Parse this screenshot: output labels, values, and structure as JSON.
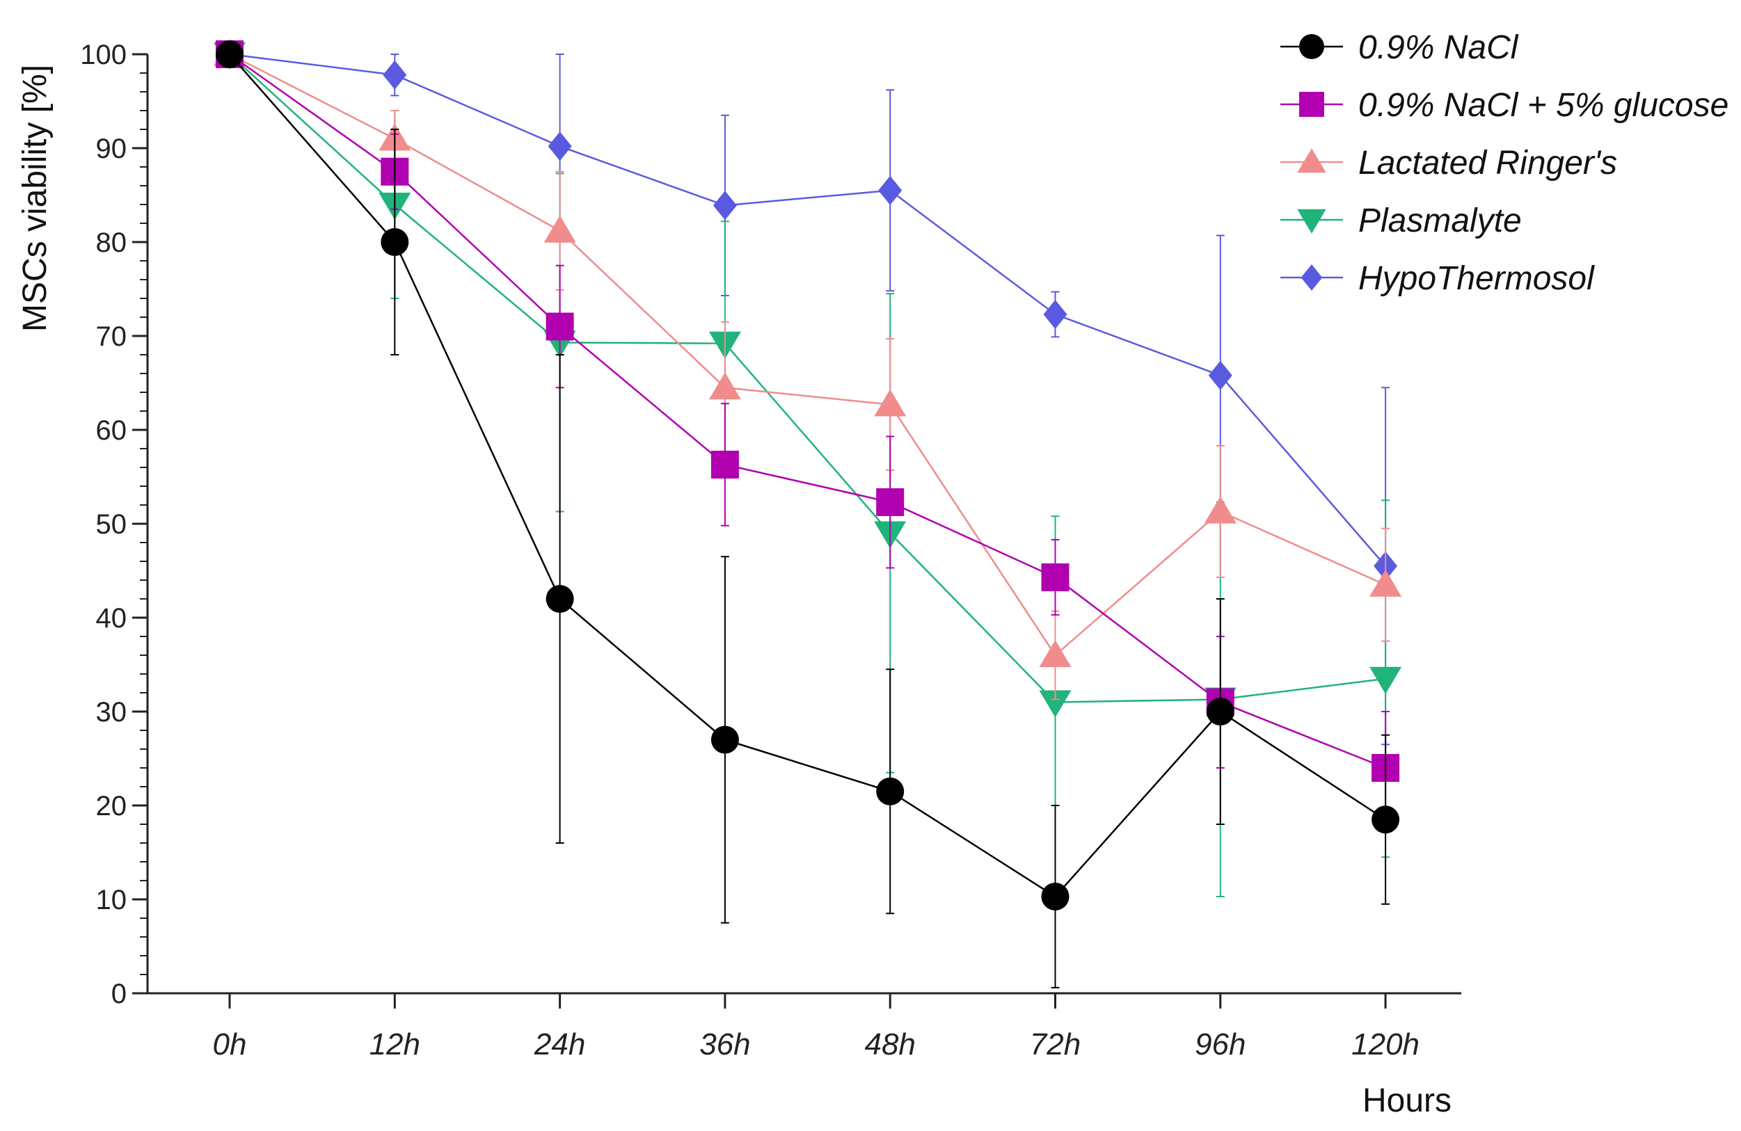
{
  "chart_data": {
    "type": "line",
    "title": "",
    "xlabel": "Hours",
    "ylabel": "MSCs viability [%]",
    "categories": [
      "0h",
      "12h",
      "24h",
      "36h",
      "48h",
      "72h",
      "96h",
      "120h"
    ],
    "ylim": [
      0,
      100
    ],
    "yticks": [
      0,
      10,
      20,
      30,
      40,
      50,
      60,
      70,
      80,
      90,
      100
    ],
    "grid": false,
    "legend_position": "top-right",
    "series": [
      {
        "name": "0.9% NaCl",
        "color": "#000000",
        "marker": "circle",
        "values": [
          100,
          80,
          42,
          27,
          21.5,
          10.3,
          30,
          18.5
        ],
        "errors": [
          0,
          12,
          26,
          19.5,
          13,
          9.7,
          12,
          9
        ]
      },
      {
        "name": "0.9% NaCl + 5% glucose",
        "color": "#b000b0",
        "marker": "square",
        "values": [
          100,
          87.5,
          71,
          56.3,
          52.3,
          44.3,
          31,
          24
        ],
        "errors": [
          0,
          4,
          6.5,
          6.5,
          7,
          4,
          7,
          6
        ]
      },
      {
        "name": "Lactated Ringer's",
        "color": "#f08c8c",
        "marker": "triangle-up",
        "values": [
          100,
          91,
          81.2,
          64.5,
          62.7,
          36,
          51.3,
          43.5
        ],
        "errors": [
          0,
          3,
          6.3,
          7,
          7,
          4.7,
          7,
          6
        ]
      },
      {
        "name": "Plasmalyte",
        "color": "#20b37a",
        "marker": "triangle-down",
        "values": [
          100,
          84,
          69.3,
          69.2,
          49,
          31,
          31.3,
          33.5
        ],
        "errors": [
          0,
          10,
          18,
          13,
          25.5,
          19.8,
          21,
          19
        ]
      },
      {
        "name": "HypoThermosol",
        "color": "#5a5ae0",
        "marker": "diamond",
        "values": [
          100,
          97.8,
          90.2,
          83.9,
          85.5,
          72.3,
          65.8,
          45.5
        ],
        "errors": [
          0,
          2.2,
          9.8,
          9.6,
          10.7,
          2.4,
          14.9,
          19
        ]
      }
    ]
  }
}
